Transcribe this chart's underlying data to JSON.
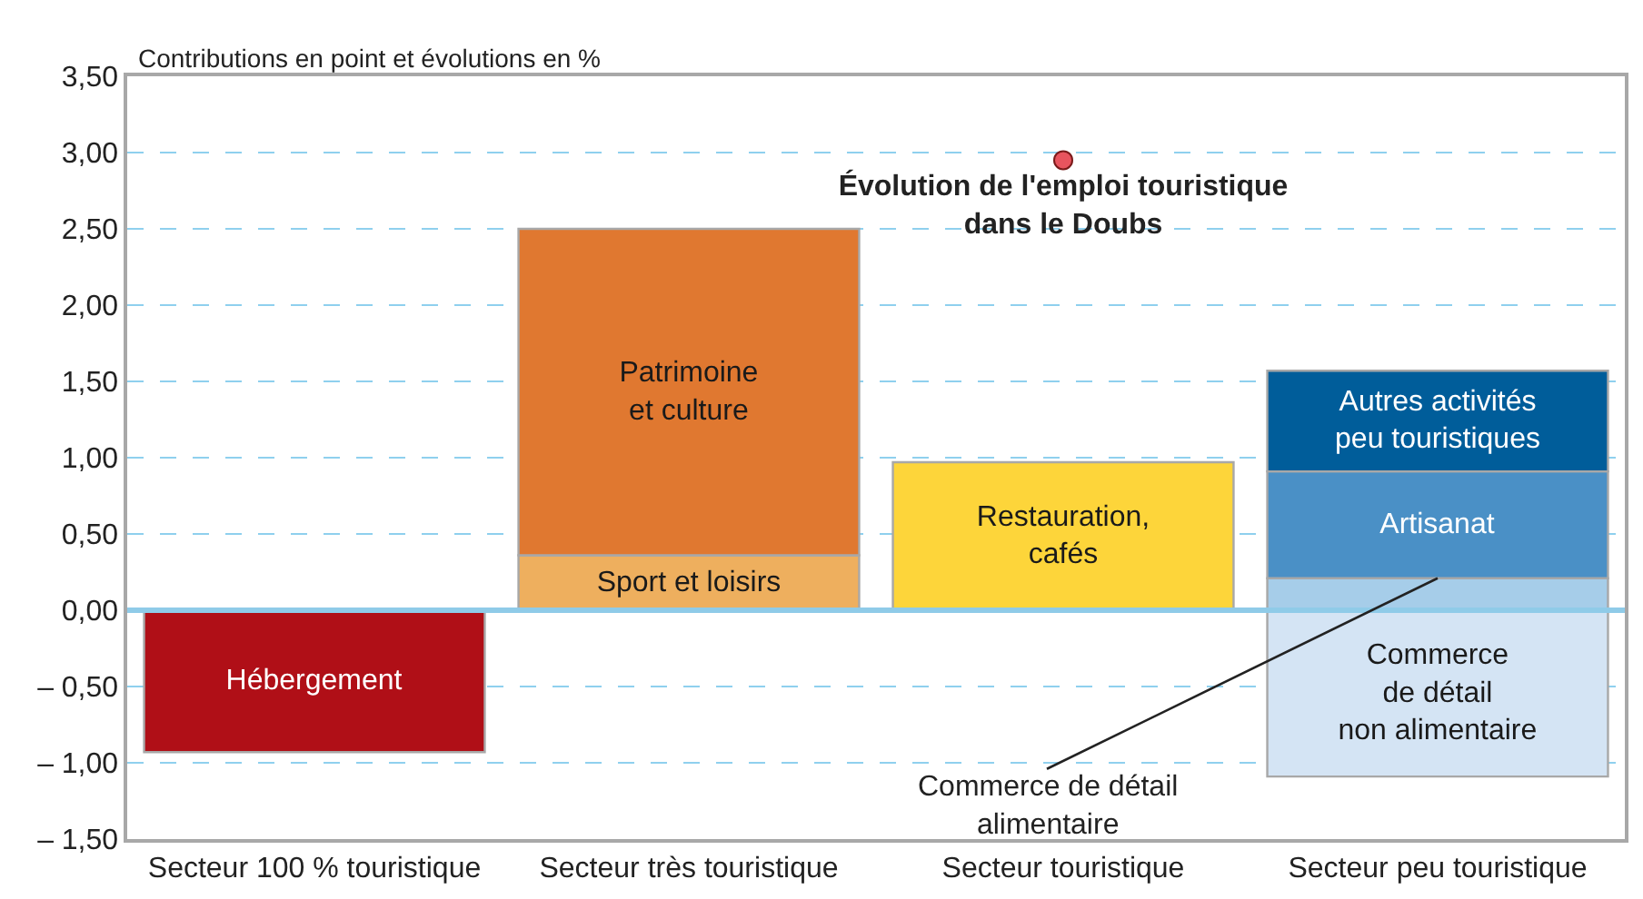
{
  "chart_data": {
    "type": "bar",
    "stacked": true,
    "ylabel": "Contributions en point et évolutions en %",
    "categories": [
      "Secteur 100 % touristique",
      "Secteur très touristique",
      "Secteur touristique",
      "Secteur peu touristique"
    ],
    "series": [
      {
        "name": "Hébergement",
        "color": "#b00f17",
        "values": [
          -0.93,
          null,
          null,
          null
        ]
      },
      {
        "name": "Sport et loisirs",
        "color": "#eeaf5e",
        "values": [
          null,
          0.36,
          null,
          null
        ]
      },
      {
        "name": "Patrimoine\net culture",
        "color": "#e07830",
        "values": [
          null,
          2.14,
          null,
          null
        ]
      },
      {
        "name": "Restauration,\ncafés",
        "color": "#fdd53a",
        "values": [
          null,
          null,
          0.97,
          null
        ]
      },
      {
        "color": "#a6cde9",
        "values": [
          null,
          null,
          null,
          0.21
        ]
      },
      {
        "name": "Artisanat",
        "color": "#4a90c6",
        "values": [
          null,
          null,
          null,
          0.7
        ]
      },
      {
        "name": "Autres activités\npeu touristiques",
        "color": "#005d9a",
        "values": [
          null,
          null,
          null,
          0.66
        ]
      },
      {
        "name": "Commerce\nde détail\nnon alimentaire",
        "color": "#d4e4f4",
        "values": [
          null,
          null,
          null,
          -1.09
        ]
      },
      {
        "type": "scatter",
        "name": "Évolution de l'emploi touristique\ndans le Doubs",
        "color": "#e8545e",
        "x": [
          "Secteur touristique"
        ],
        "values": [
          2.95
        ]
      }
    ],
    "annotations": [
      {
        "text": "Commerce de détail\nalimentaire",
        "x": "Secteur peu touristique",
        "y": 0.21
      }
    ],
    "ref_lines": [
      {
        "axis": "y",
        "value": 0,
        "color": "#8fcbe8",
        "line_style": "solid"
      }
    ],
    "ylim": [
      -1.5,
      3.5
    ],
    "yticks": [
      {
        "value": -1.5,
        "label": "– 1,50"
      },
      {
        "value": -1,
        "label": "– 1,00"
      },
      {
        "value": -0.5,
        "label": "– 0,50"
      },
      {
        "value": 0,
        "label": "0,00"
      },
      {
        "value": 0.5,
        "label": "0,50"
      },
      {
        "value": 1,
        "label": "1,00"
      },
      {
        "value": 1.5,
        "label": "1,50"
      },
      {
        "value": 2,
        "label": "2,00"
      },
      {
        "value": 2.5,
        "label": "2,50"
      },
      {
        "value": 3,
        "label": "3,00"
      },
      {
        "value": 3.5,
        "label": "3,50"
      }
    ],
    "grid": "y",
    "legend": false,
    "data_labels": false
  }
}
